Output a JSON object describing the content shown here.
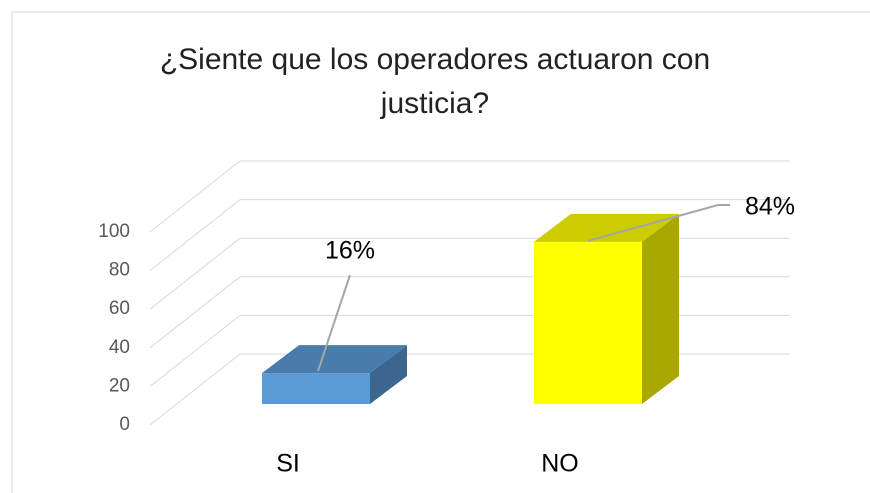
{
  "chart_data": {
    "type": "bar3d",
    "title": "¿Siente que los operadores actuaron con justicia?",
    "categories": [
      "SI",
      "NO"
    ],
    "values": [
      16,
      84
    ],
    "value_labels": [
      "16%",
      "84%"
    ],
    "colors": [
      "#5b9bd5",
      "#ffff00"
    ],
    "ylim": [
      0,
      100
    ],
    "yticks": [
      0,
      20,
      40,
      60,
      80,
      100
    ],
    "grid": true
  }
}
